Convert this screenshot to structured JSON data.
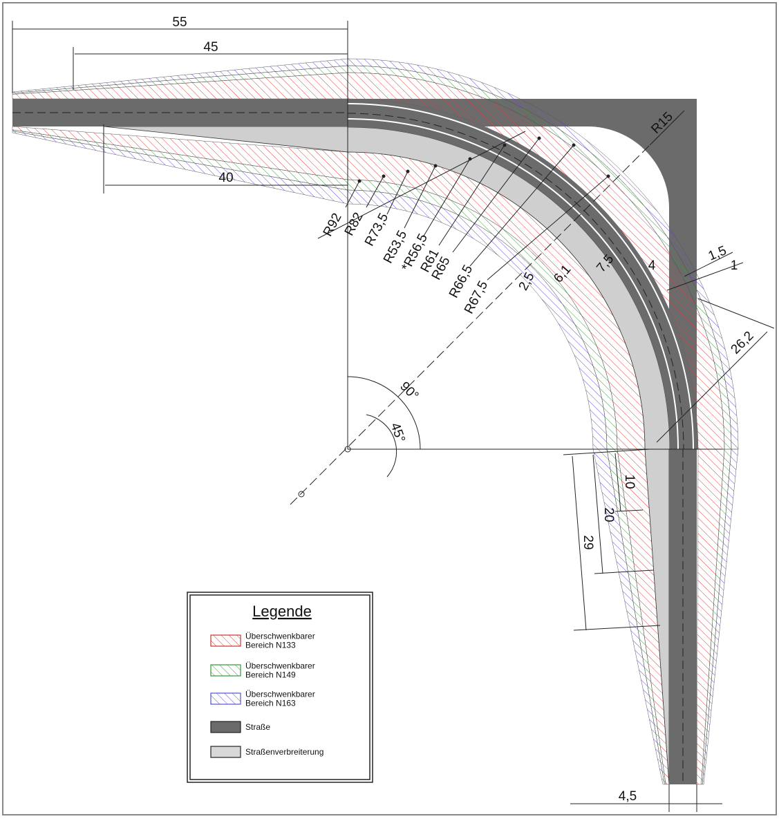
{
  "lengths": [
    "55",
    "45",
    "40",
    "10",
    "20",
    "29",
    "4,5",
    "2,5",
    "6,1",
    "7,5",
    "4",
    "1,5",
    "1",
    "26,2"
  ],
  "radii": [
    "R92",
    "R82",
    "R73,5",
    "R53,5",
    "*R56,5",
    "R61",
    "R65",
    "R66,5",
    "R67,5",
    "R15"
  ],
  "angles": [
    "90°",
    "45°"
  ],
  "legend": {
    "title": "Legende",
    "items": [
      {
        "lines": [
          "Überschwenkbarer",
          "Bereich N133"
        ]
      },
      {
        "lines": [
          "Überschwenkbarer",
          "Bereich N149"
        ]
      },
      {
        "lines": [
          "Überschwenkbarer",
          "Bereich N163"
        ]
      },
      {
        "lines": [
          "Straße"
        ]
      },
      {
        "lines": [
          "Straßenverbreiterung"
        ]
      }
    ]
  }
}
